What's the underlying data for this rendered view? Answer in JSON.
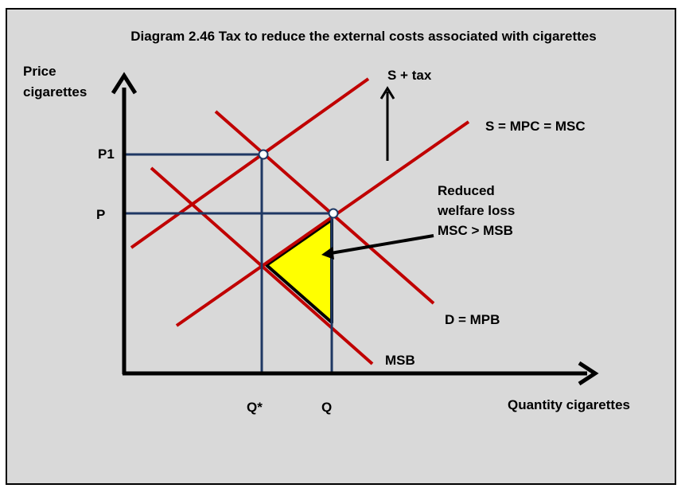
{
  "title": "Diagram 2.46 Tax to reduce the external costs associated with cigarettes",
  "y_axis_label": [
    "Price",
    "cigarettes"
  ],
  "x_axis_label": "Quantity cigarettes",
  "price_labels": {
    "p1": "P1",
    "p": "P"
  },
  "quantity_labels": {
    "q_star": "Q*",
    "q": "Q"
  },
  "curve_labels": {
    "s_tax": "S + tax",
    "supply": "S = MPC = MSC",
    "demand": "D = MPB",
    "msb": "MSB"
  },
  "annotation": [
    "Reduced",
    "welfare loss",
    "MSC > MSB"
  ],
  "colors": {
    "background": "#d9d9d9",
    "curves": "#c00000",
    "guide_lines": "#1f3864",
    "welfare_area": "#ffff00",
    "axes": "#000000"
  }
}
